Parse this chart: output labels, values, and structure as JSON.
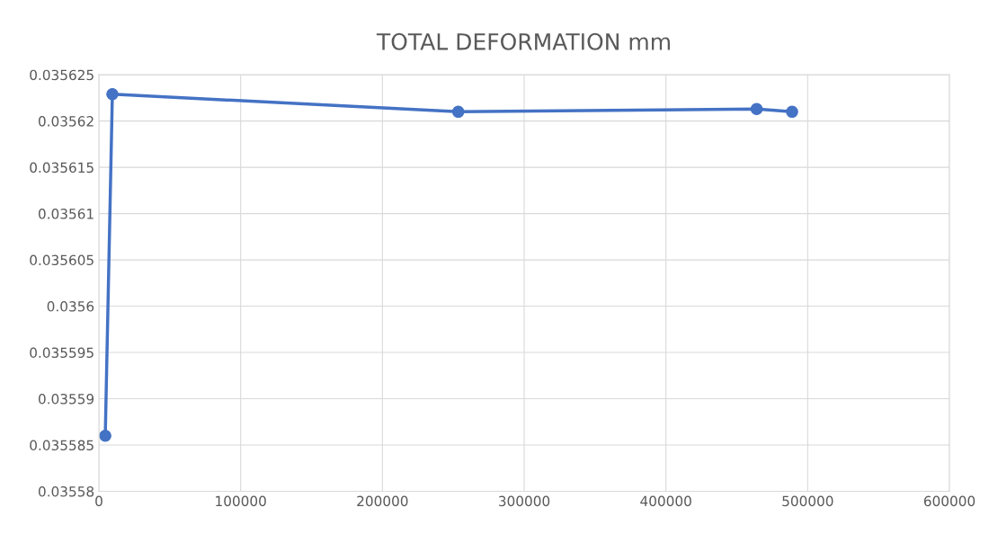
{
  "chart_data": {
    "type": "line",
    "title": "TOTAL DEFORMATION mm",
    "x": [
      4500,
      9500,
      253500,
      464000,
      489000
    ],
    "series": [
      {
        "color": "#4472c4",
        "values": [
          0.035586,
          0.0356229,
          0.035621,
          0.0356213,
          0.035621
        ]
      }
    ],
    "xlim": [
      0,
      600000
    ],
    "xticks": [
      0,
      100000,
      200000,
      300000,
      400000,
      500000,
      600000
    ],
    "ylim": [
      0.03558,
      0.035625
    ],
    "yticks": [
      0.03558,
      0.035585,
      0.03559,
      0.035595,
      0.0356,
      0.035605,
      0.03561,
      0.035615,
      0.03562,
      0.035625
    ],
    "grid": true,
    "marker": "circle",
    "line_style": "solid"
  }
}
